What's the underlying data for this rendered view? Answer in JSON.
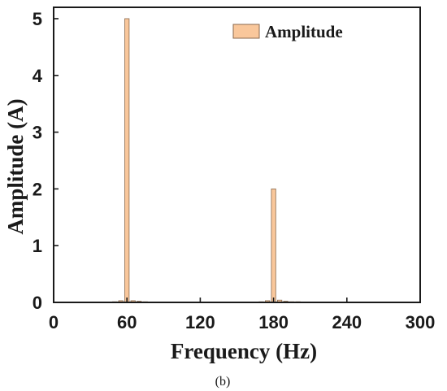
{
  "chart_data": {
    "type": "bar",
    "xlabel": "Frequency (Hz)",
    "ylabel": "Amplitude (A)",
    "xlim": [
      0,
      300
    ],
    "ylim": [
      0,
      5.2
    ],
    "xticks": [
      0,
      60,
      120,
      180,
      240,
      300
    ],
    "yticks": [
      0,
      1,
      2,
      3,
      4,
      5
    ],
    "grid": false,
    "legend_position": "top-right",
    "series": [
      {
        "name": "Amplitude",
        "color": "#f9c79b",
        "x": [
          50,
          55,
          60,
          65,
          70,
          75,
          170,
          175,
          180,
          185,
          190,
          195,
          200
        ],
        "values": [
          0.005,
          0.03,
          5.0,
          0.03,
          0.02,
          0.01,
          0.005,
          0.03,
          2.0,
          0.04,
          0.02,
          0.01,
          0.005
        ]
      }
    ],
    "caption": "(b)"
  }
}
